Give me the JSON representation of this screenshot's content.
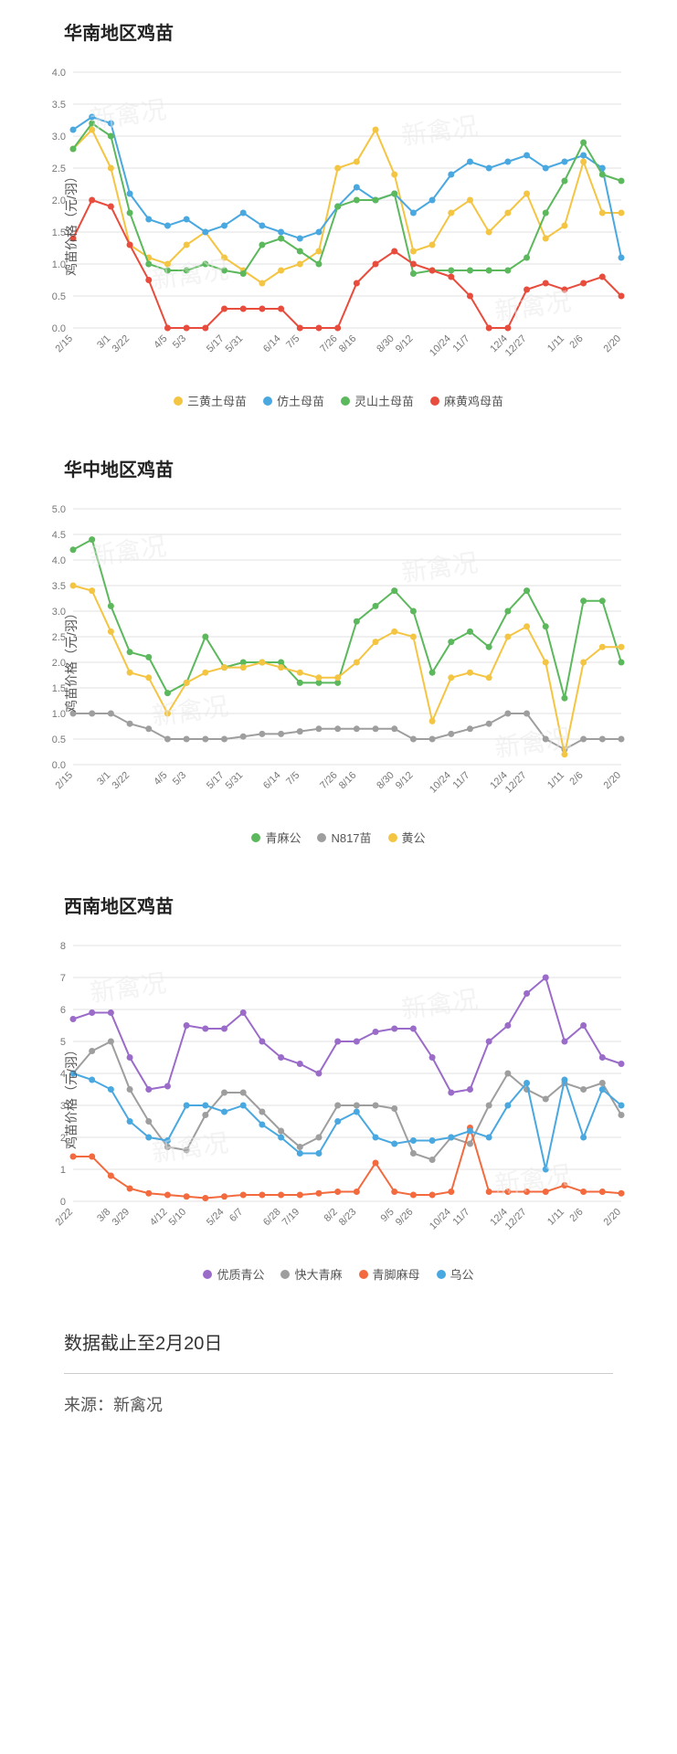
{
  "watermark_text": "新禽况",
  "footer_note": "数据截止至2月20日",
  "source_label": "来源：",
  "source_value": "新禽况",
  "global": {
    "grid_color": "#e0e0e0",
    "axis_color": "#888888",
    "text_color": "#777777",
    "background": "#ffffff",
    "marker_radius": 3.5,
    "line_width": 2,
    "label_fontsize": 11,
    "tick_fontsize": 11
  },
  "charts": [
    {
      "id": "south",
      "title": "华南地区鸡苗",
      "ylabel": "鸡苗价格（元/羽）",
      "ylim": [
        0,
        4.0
      ],
      "ytick_step": 0.5,
      "x_labels": [
        "2/15",
        "3/1",
        "3/22",
        "4/5",
        "5/3",
        "5/17",
        "5/31",
        "6/14",
        "7/5",
        "7/26",
        "8/16",
        "8/30",
        "9/12",
        "10/24",
        "11/7",
        "12/4",
        "12/27",
        "1/11",
        "2/6",
        "2/20"
      ],
      "x_count": 30,
      "series": [
        {
          "name": "三黄土母苗",
          "color": "#f4c542",
          "values": [
            2.8,
            3.1,
            2.5,
            1.3,
            1.1,
            1.0,
            1.3,
            1.5,
            1.1,
            0.9,
            0.7,
            0.9,
            1.0,
            1.2,
            2.5,
            2.6,
            3.1,
            2.4,
            1.2,
            1.3,
            1.8,
            2.0,
            1.5,
            1.8,
            2.1,
            1.4,
            1.6,
            2.6,
            1.8,
            1.8
          ]
        },
        {
          "name": "仿土母苗",
          "color": "#4aa8e0",
          "values": [
            3.1,
            3.3,
            3.2,
            2.1,
            1.7,
            1.6,
            1.7,
            1.5,
            1.6,
            1.8,
            1.6,
            1.5,
            1.4,
            1.5,
            1.9,
            2.2,
            2.0,
            2.1,
            1.8,
            2.0,
            2.4,
            2.6,
            2.5,
            2.6,
            2.7,
            2.5,
            2.6,
            2.7,
            2.5,
            1.1
          ]
        },
        {
          "name": "灵山土母苗",
          "color": "#5cb85c",
          "values": [
            2.8,
            3.2,
            3.0,
            1.8,
            1.0,
            0.9,
            0.9,
            1.0,
            0.9,
            0.85,
            1.3,
            1.4,
            1.2,
            1.0,
            1.9,
            2.0,
            2.0,
            2.1,
            0.85,
            0.9,
            0.9,
            0.9,
            0.9,
            0.9,
            1.1,
            1.8,
            2.3,
            2.9,
            2.4,
            2.3
          ]
        },
        {
          "name": "麻黄鸡母苗",
          "color": "#e84c3d",
          "values": [
            1.4,
            2.0,
            1.9,
            1.3,
            0.75,
            0.0,
            0.0,
            0.0,
            0.3,
            0.3,
            0.3,
            0.3,
            0.0,
            0.0,
            0.0,
            0.7,
            1.0,
            1.2,
            1.0,
            0.9,
            0.8,
            0.5,
            0.0,
            0.0,
            0.6,
            0.7,
            0.6,
            0.7,
            0.8,
            0.5
          ]
        }
      ]
    },
    {
      "id": "central",
      "title": "华中地区鸡苗",
      "ylabel": "鸡苗价格（元/羽）",
      "ylim": [
        0,
        5.0
      ],
      "ytick_step": 0.5,
      "x_labels": [
        "2/15",
        "3/1",
        "3/22",
        "4/5",
        "5/3",
        "5/17",
        "5/31",
        "6/14",
        "7/5",
        "7/26",
        "8/16",
        "8/30",
        "9/12",
        "10/24",
        "11/7",
        "12/4",
        "12/27",
        "1/11",
        "2/6",
        "2/20"
      ],
      "x_count": 30,
      "series": [
        {
          "name": "青麻公",
          "color": "#5cb85c",
          "values": [
            4.2,
            4.4,
            3.1,
            2.2,
            2.1,
            1.4,
            1.6,
            2.5,
            1.9,
            2.0,
            2.0,
            2.0,
            1.6,
            1.6,
            1.6,
            2.8,
            3.1,
            3.4,
            3.0,
            1.8,
            2.4,
            2.6,
            2.3,
            3.0,
            3.4,
            2.7,
            1.3,
            3.2,
            3.2,
            2.0
          ]
        },
        {
          "name": "N817苗",
          "color": "#9e9e9e",
          "values": [
            1.0,
            1.0,
            1.0,
            0.8,
            0.7,
            0.5,
            0.5,
            0.5,
            0.5,
            0.55,
            0.6,
            0.6,
            0.65,
            0.7,
            0.7,
            0.7,
            0.7,
            0.7,
            0.5,
            0.5,
            0.6,
            0.7,
            0.8,
            1.0,
            1.0,
            0.5,
            0.3,
            0.5,
            0.5,
            0.5
          ]
        },
        {
          "name": "黄公",
          "color": "#f4c542",
          "values": [
            3.5,
            3.4,
            2.6,
            1.8,
            1.7,
            1.0,
            1.6,
            1.8,
            1.9,
            1.9,
            2.0,
            1.9,
            1.8,
            1.7,
            1.7,
            2.0,
            2.4,
            2.6,
            2.5,
            0.85,
            1.7,
            1.8,
            1.7,
            2.5,
            2.7,
            2.0,
            0.2,
            2.0,
            2.3,
            2.3
          ]
        }
      ]
    },
    {
      "id": "southwest",
      "title": "西南地区鸡苗",
      "ylabel": "鸡苗价格（元/羽）",
      "ylim": [
        0,
        8
      ],
      "ytick_step": 1,
      "x_labels": [
        "2/22",
        "3/8",
        "3/29",
        "4/12",
        "5/10",
        "5/24",
        "6/7",
        "6/28",
        "7/19",
        "8/2",
        "8/23",
        "9/5",
        "9/26",
        "10/24",
        "11/7",
        "12/4",
        "12/27",
        "1/11",
        "2/6",
        "2/20"
      ],
      "x_count": 30,
      "series": [
        {
          "name": "优质青公",
          "color": "#9b6bc9",
          "values": [
            5.7,
            5.9,
            5.9,
            4.5,
            3.5,
            3.6,
            5.5,
            5.4,
            5.4,
            5.9,
            5.0,
            4.5,
            4.3,
            4.0,
            5.0,
            5.0,
            5.3,
            5.4,
            5.4,
            4.5,
            3.4,
            3.5,
            5.0,
            5.5,
            6.5,
            7.0,
            5.0,
            5.5,
            4.5,
            4.3
          ]
        },
        {
          "name": "快大青麻",
          "color": "#9e9e9e",
          "values": [
            4.0,
            4.7,
            5.0,
            3.5,
            2.5,
            1.7,
            1.6,
            2.7,
            3.4,
            3.4,
            2.8,
            2.2,
            1.7,
            2.0,
            3.0,
            3.0,
            3.0,
            2.9,
            1.5,
            1.3,
            2.0,
            1.8,
            3.0,
            4.0,
            3.5,
            3.2,
            3.7,
            3.5,
            3.7,
            2.7
          ]
        },
        {
          "name": "青脚麻母",
          "color": "#f26a3d",
          "values": [
            1.4,
            1.4,
            0.8,
            0.4,
            0.25,
            0.2,
            0.15,
            0.1,
            0.15,
            0.2,
            0.2,
            0.2,
            0.2,
            0.25,
            0.3,
            0.3,
            1.2,
            0.3,
            0.2,
            0.2,
            0.3,
            2.3,
            0.3,
            0.3,
            0.3,
            0.3,
            0.5,
            0.3,
            0.3,
            0.25
          ]
        },
        {
          "name": "乌公",
          "color": "#4aa8e0",
          "values": [
            4.0,
            3.8,
            3.5,
            2.5,
            2.0,
            1.9,
            3.0,
            3.0,
            2.8,
            3.0,
            2.4,
            2.0,
            1.5,
            1.5,
            2.5,
            2.8,
            2.0,
            1.8,
            1.9,
            1.9,
            2.0,
            2.2,
            2.0,
            3.0,
            3.7,
            1.0,
            3.8,
            2.0,
            3.5,
            3.0
          ]
        }
      ]
    }
  ]
}
